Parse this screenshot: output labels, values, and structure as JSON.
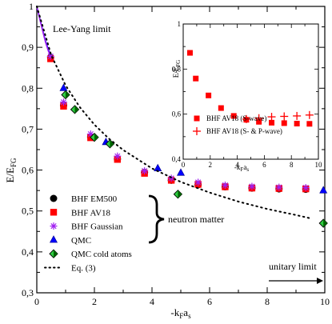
{
  "chart_data": [
    {
      "type": "scatter",
      "xlabel_main": "-k",
      "xlabel_sub": "F",
      "xlabel_tail": "a",
      "xlabel_tail_sub": "s",
      "ylabel_main": "E/E",
      "ylabel_sub": "FG",
      "xlim": [
        0,
        10
      ],
      "ylim": [
        0.3,
        1.0
      ],
      "xticks": [
        "0",
        "2",
        "4",
        "6",
        "8",
        "10"
      ],
      "yticks": [
        "0,3",
        "0,4",
        "0,5",
        "0,6",
        "0,7",
        "0,8",
        "0,9",
        "1"
      ],
      "annotations": {
        "lee_yang": "Lee-Yang limit",
        "unitary": "unitary limit",
        "neutron_matter": "neutron matter"
      },
      "series": [
        {
          "name": "BHF EM500",
          "marker": "circle",
          "color": "#000000",
          "x": [
            0.48,
            0.93,
            1.87,
            2.8,
            3.74,
            4.67,
            5.6,
            6.54,
            7.47,
            8.41,
            9.34
          ],
          "y": [
            0.875,
            0.758,
            0.681,
            0.627,
            0.594,
            0.575,
            0.564,
            0.559,
            0.556,
            0.554,
            0.553
          ]
        },
        {
          "name": "BHF AV18",
          "marker": "square",
          "color": "#ff0000",
          "x": [
            0.48,
            0.93,
            1.87,
            2.8,
            3.74,
            4.67,
            5.6,
            6.54,
            7.47,
            8.41,
            9.34
          ],
          "y": [
            0.872,
            0.756,
            0.679,
            0.626,
            0.592,
            0.575,
            0.565,
            0.559,
            0.556,
            0.555,
            0.554
          ]
        },
        {
          "name": "BHF Gaussian",
          "marker": "star",
          "color": "#a020f0",
          "x": [
            0.48,
            0.93,
            1.87,
            2.8,
            3.74,
            4.67,
            5.6,
            6.54,
            7.47,
            8.41,
            9.34
          ],
          "y": [
            0.878,
            0.766,
            0.688,
            0.634,
            0.598,
            0.58,
            0.57,
            0.563,
            0.56,
            0.558,
            0.557
          ]
        },
        {
          "name": "QMC",
          "marker": "triangle",
          "color": "#0000ff",
          "x": [
            0.93,
            2.4,
            4.2,
            5.0,
            9.95
          ],
          "y": [
            0.8,
            0.668,
            0.604,
            0.593,
            0.55
          ]
        },
        {
          "name": "QMC cold atoms",
          "marker": "diamond",
          "color": "#2e8b57",
          "x": [
            1.0,
            1.32,
            2.0,
            2.54,
            4.9,
            9.95
          ],
          "y": [
            0.784,
            0.748,
            0.68,
            0.664,
            0.541,
            0.47
          ]
        },
        {
          "name": "Eq. (3)",
          "marker": "dotted-line",
          "color": "#000000",
          "x": [
            0,
            0.5,
            1,
            1.5,
            2,
            2.5,
            3,
            4,
            5,
            6,
            7,
            8,
            9,
            9.5
          ],
          "y": [
            1.0,
            0.881,
            0.807,
            0.753,
            0.711,
            0.677,
            0.649,
            0.604,
            0.571,
            0.545,
            0.523,
            0.505,
            0.49,
            0.482
          ]
        }
      ],
      "curve_purple": {
        "x": [
          0,
          0.1,
          0.2,
          0.3,
          0.4,
          0.48
        ],
        "y": [
          1.0,
          0.97,
          0.941,
          0.913,
          0.891,
          0.877
        ]
      },
      "curve_blue": {
        "x": [
          0,
          0.1,
          0.2,
          0.3,
          0.4,
          0.48
        ],
        "y": [
          1.0,
          0.971,
          0.943,
          0.916,
          0.895,
          0.88
        ]
      }
    },
    {
      "type": "scatter",
      "xlabel_main": "-k",
      "xlabel_sub": "F",
      "xlabel_tail": "a",
      "xlabel_tail_sub": "s",
      "ylabel_main": "E/E",
      "ylabel_sub": "FG",
      "xlim": [
        0,
        10
      ],
      "ylim": [
        0.4,
        1.0
      ],
      "xticks": [
        "0",
        "2",
        "4",
        "6",
        "8",
        "10"
      ],
      "yticks": [
        "0,4",
        "0,6",
        "0,8",
        "1"
      ],
      "series": [
        {
          "name": "BHF AV18 (S-wave)",
          "marker": "square",
          "color": "#ff0000",
          "x": [
            0.5,
            0.93,
            1.87,
            2.8,
            3.74,
            4.67,
            5.6,
            6.54,
            7.47,
            8.41,
            9.34
          ],
          "y": [
            0.872,
            0.758,
            0.683,
            0.627,
            0.592,
            0.575,
            0.566,
            0.562,
            0.56,
            0.558,
            0.557
          ]
        },
        {
          "name": "BHF AV18 (S- & P-wave)",
          "marker": "plus",
          "color": "#ff0000",
          "x": [
            4.67,
            5.6,
            6.54,
            7.47,
            8.41,
            9.34
          ],
          "y": [
            0.578,
            0.582,
            0.588,
            0.59,
            0.592,
            0.596
          ]
        }
      ]
    }
  ]
}
